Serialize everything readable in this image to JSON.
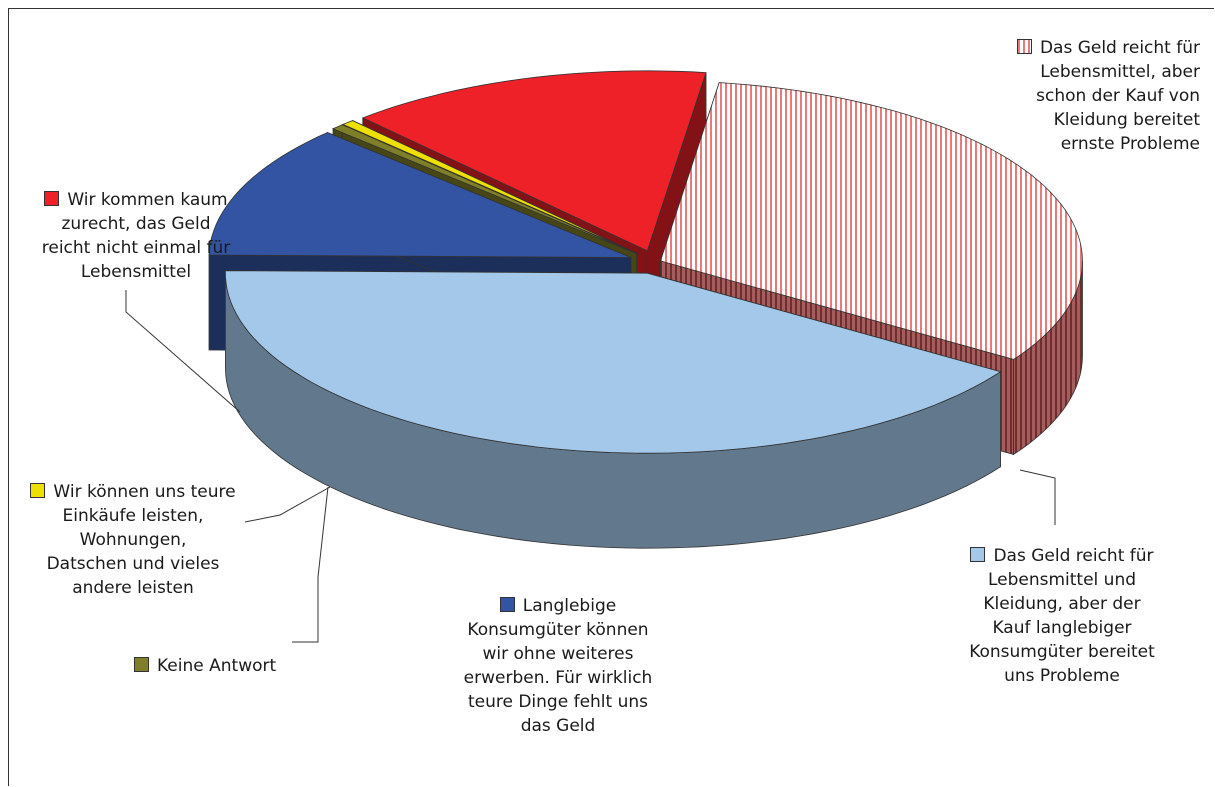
{
  "chart_data": {
    "type": "pie",
    "style": "3d-exploded",
    "legend_placement": "callout labels beside slices",
    "slices": [
      {
        "label": "Das Geld reicht für Lebensmittel, aber schon der Kauf von Kleidung bereitet ernste Probleme",
        "value": 32,
        "color": "#f4b8b8",
        "pattern": "vertical-stripes"
      },
      {
        "label": "Das Geld reicht für Lebensmittel und Kleidung, aber der Kauf langlebiger Konsumgüter bereitet uns Probleme",
        "value": 41,
        "color": "#a3c8ea"
      },
      {
        "label": "Langlebige Konsumgüter können wir ohne weiteres erwerben. Für wirklich teure Dinge fehlt uns das Geld",
        "value": 12,
        "color": "#3353a3"
      },
      {
        "label": "Keine Antwort",
        "value": 0.5,
        "color": "#7f7f2a"
      },
      {
        "label": "Wir können uns teure Einkäufe leisten, Wohnungen, Datschen und vieles andere leisten",
        "value": 0.5,
        "color": "#eee000"
      },
      {
        "label": "Wir kommen kaum zurecht, das Geld reicht nicht einmal für Lebensmittel",
        "value": 14,
        "color": "#ee2028"
      }
    ]
  },
  "labels": {
    "kleidung": "Das Geld reicht für\nLebensmittel, aber\nschon der Kauf von\nKleidung bereitet\nernste Probleme",
    "langlebig": "Das Geld reicht für\nLebensmittel und\nKleidung, aber der\nKauf langlebiger\nKonsumgüter bereitet\nuns Probleme",
    "teure_dinge": "Langlebige\nKonsumgüter können\nwir ohne weiteres\nerwerben. Für wirklich\nteure Dinge fehlt uns\ndas Geld",
    "keine_antwort": "Keine Antwort",
    "teure_einkaeufe": "Wir können uns teure\nEinkäufe leisten,\nWohnungen,\nDatschen und vieles\nandere leisten",
    "kaum": "Wir kommen kaum\nzurecht, das Geld\nreicht nicht einmal für\nLebensmittel"
  }
}
